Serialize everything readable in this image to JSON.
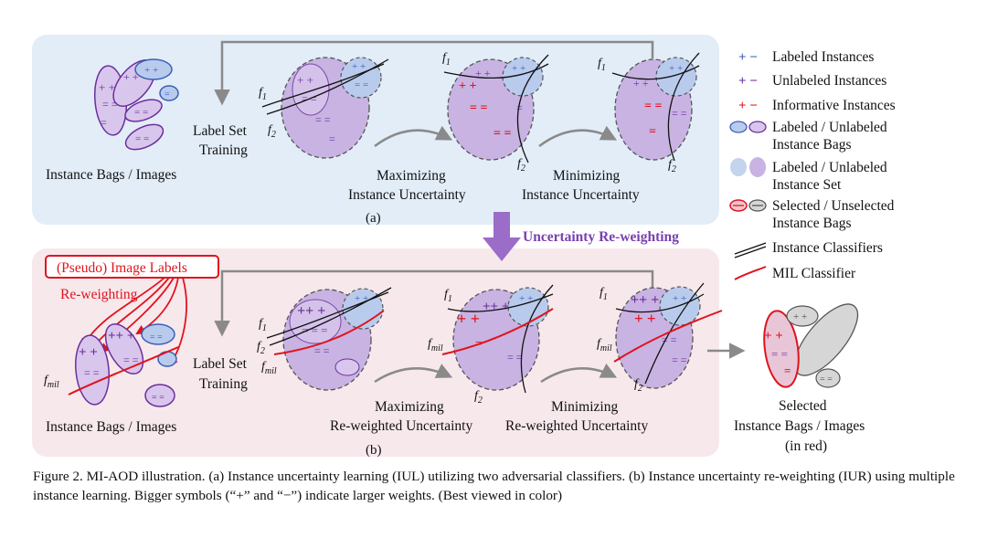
{
  "panel_a": {
    "bags_label": "Instance Bags / Images",
    "label_set_training_1": "Label Set",
    "label_set_training_2": "Training",
    "step1_1": "Maximizing",
    "step1_2": "Instance Uncertainty",
    "step2_1": "Minimizing",
    "step2_2": "Instance Uncertainty",
    "tag": "(a)"
  },
  "middle": {
    "reweighting_label": "Uncertainty Re-weighting"
  },
  "panel_b": {
    "pseudo_labels": "(Pseudo) Image Labels",
    "reweighting": "Re-weighting",
    "bags_label": "Instance Bags / Images",
    "label_set_training_1": "Label Set",
    "label_set_training_2": "Training",
    "step1_1": "Maximizing",
    "step1_2": "Re-weighted Uncertainty",
    "step2_1": "Minimizing",
    "step2_2": "Re-weighted Uncertainty",
    "selected_1": "Selected",
    "selected_2": "Instance Bags / Images",
    "selected_3": "(in red)",
    "tag": "(b)"
  },
  "legend": {
    "labeled_instances": "Labeled Instances",
    "unlabeled_instances": "Unlabeled Instances",
    "informative_instances": "Informative Instances",
    "bags_1": "Labeled / Unlabeled",
    "bags_2": "Instance Bags",
    "set_1": "Labeled / Unlabeled",
    "set_2": "Instance Set",
    "selected_1": "Selected / Unselected",
    "selected_2": "Instance Bags",
    "instance_classifiers": "Instance Classifiers",
    "mil_classifier": "MIL Classifier"
  },
  "symbols": {
    "f1": "f",
    "f1_sub": "1",
    "f2": "f",
    "f2_sub": "2",
    "fmil": "f",
    "fmil_sub": "mil"
  },
  "caption": "Figure 2. MI-AOD illustration.  (a) Instance uncertainty learning (IUL) utilizing two adversarial classifiers.  (b) Instance uncertainty re-weighting (IUR) using multiple instance learning. Bigger symbols (“+” and “−”) indicate larger weights. (Best viewed in color)",
  "colors": {
    "panel_a_bg": "#e2edf8",
    "panel_b_bg": "#f7e8ec",
    "labeled": "#3b5fb8",
    "unlabeled": "#6b2f9c",
    "informative": "#e0141e",
    "arrow_purple": "#9b6cc8",
    "mil_red": "#e0141e"
  }
}
